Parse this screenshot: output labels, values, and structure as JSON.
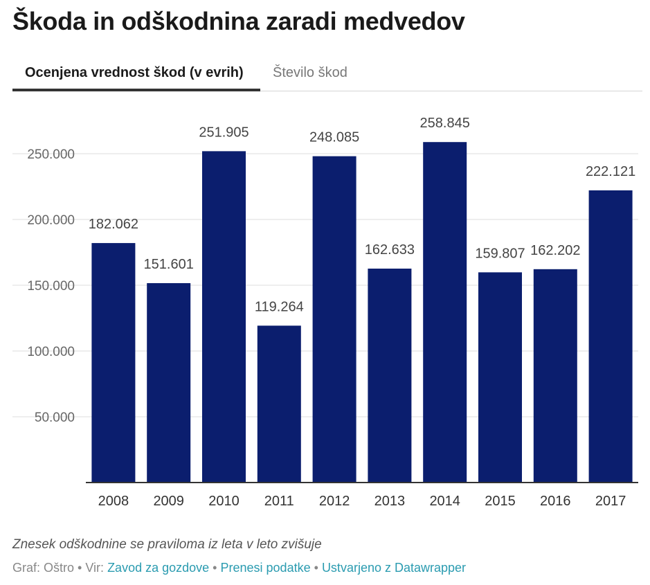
{
  "title": "Škoda in odškodnina zaradi medvedov",
  "tabs": [
    {
      "label": "Ocenjena vrednost škod (v evrih)",
      "active": true
    },
    {
      "label": "Število škod",
      "active": false
    }
  ],
  "chart_data": {
    "type": "bar",
    "categories": [
      "2008",
      "2009",
      "2010",
      "2011",
      "2012",
      "2013",
      "2014",
      "2015",
      "2016",
      "2017"
    ],
    "values": [
      182062,
      151601,
      251905,
      119264,
      248085,
      162633,
      258845,
      159807,
      162202,
      222121
    ],
    "value_labels": [
      "182.062",
      "151.601",
      "251.905",
      "119.264",
      "248.085",
      "162.633",
      "258.845",
      "159.807",
      "162.202",
      "222.121"
    ],
    "yticks": [
      50000,
      100000,
      150000,
      200000,
      250000
    ],
    "ytick_labels": [
      "50.000",
      "100.000",
      "150.000",
      "200.000",
      "250.000"
    ],
    "ylim": [
      0,
      275000
    ],
    "grid": true,
    "bar_color": "#0b1e6e",
    "title": "",
    "xlabel": "",
    "ylabel": ""
  },
  "note": "Znesek odškodnine se praviloma iz leta v leto zvišuje",
  "footer": {
    "graph_label": "Graf: Oštro",
    "source_prefix": "Vir:",
    "source_link": "Zavod za gozdove",
    "separator": "•",
    "download_link": "Prenesi podatke",
    "created_link": "Ustvarjeno z Datawrapper"
  }
}
